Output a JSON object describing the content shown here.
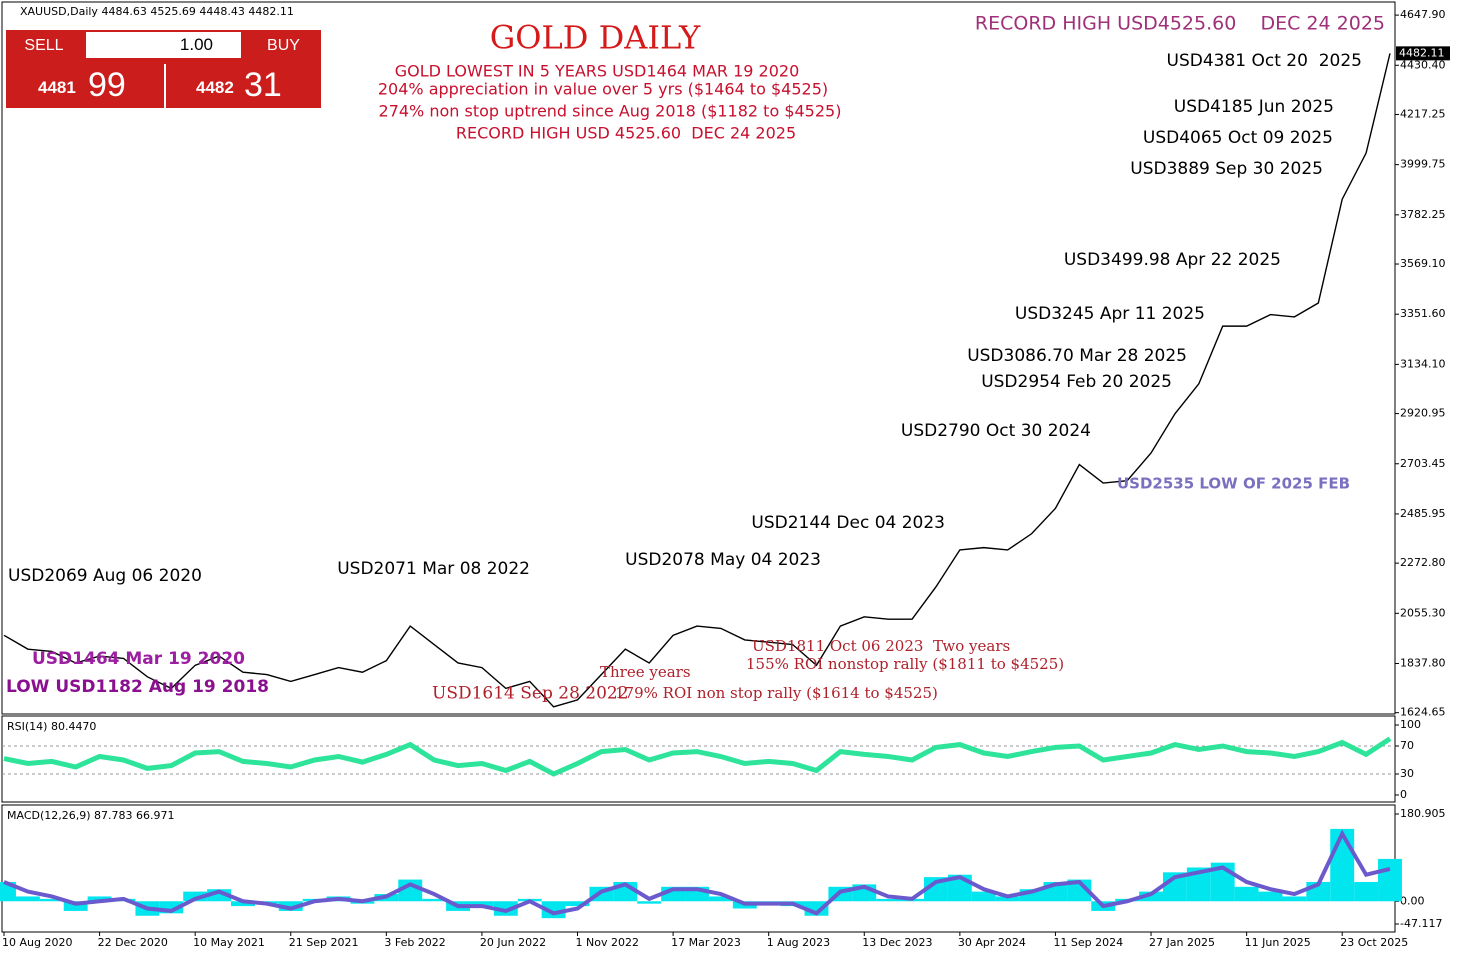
{
  "header": {
    "symbol": "XAUUSD,Daily  4484.63 4525.69 4448.43 4482.11"
  },
  "trade_panel": {
    "sell": "SELL",
    "lot": "1.00",
    "buy": "BUY",
    "sell_big": "4481",
    "sell_small": "99",
    "buy_big": "4482",
    "buy_small": "31"
  },
  "chart_data": [
    {
      "type": "line",
      "color": "#000000",
      "categories": [
        "10 Aug 2020",
        null,
        null,
        null,
        "22 Dec 2020",
        null,
        null,
        null,
        "10 May 2021",
        null,
        null,
        null,
        "21 Sep 2021",
        null,
        null,
        null,
        "3 Feb 2022",
        null,
        null,
        null,
        "20 Jun 2022",
        null,
        null,
        null,
        "1 Nov 2022",
        null,
        null,
        null,
        "17 Mar 2023",
        null,
        null,
        null,
        "1 Aug 2023",
        null,
        null,
        null,
        "13 Dec 2023",
        null,
        null,
        null,
        "30 Apr 2024",
        null,
        null,
        null,
        "11 Sep 2024",
        null,
        null,
        null,
        "27 Jan 2025",
        null,
        null,
        null,
        "11 Jun 2025",
        null,
        null,
        null,
        "23 Oct 2025",
        null,
        null
      ],
      "values": [
        1960,
        1900,
        1890,
        1840,
        1870,
        1860,
        1780,
        1730,
        1830,
        1870,
        1800,
        1790,
        1760,
        1790,
        1820,
        1800,
        1850,
        2000,
        1920,
        1840,
        1820,
        1730,
        1760,
        1650,
        1680,
        1790,
        1900,
        1840,
        1960,
        2000,
        1990,
        1940,
        1930,
        1920,
        1830,
        2000,
        2040,
        2030,
        2030,
        2170,
        2330,
        2340,
        2330,
        2400,
        2510,
        2700,
        2620,
        2630,
        2750,
        2920,
        3050,
        3300,
        3300,
        3350,
        3340,
        3400,
        3850,
        4050,
        4482.11
      ],
      "ylim": [
        1540.9,
        4678.7
      ],
      "yticks": [
        {
          "value": 1624.65,
          "label": "1624.65"
        },
        {
          "value": 1837.8,
          "label": "1837.80"
        },
        {
          "value": 2055.3,
          "label": "2055.30"
        },
        {
          "value": 2272.8,
          "label": "2272.80"
        },
        {
          "value": 2485.95,
          "label": "2485.95"
        },
        {
          "value": 2703.45,
          "label": "2703.45"
        },
        {
          "value": 2920.95,
          "label": "2920.95"
        },
        {
          "value": 3134.1,
          "label": "3134.10"
        },
        {
          "value": 3351.6,
          "label": "3351.60"
        },
        {
          "value": 3569.1,
          "label": "3569.10"
        },
        {
          "value": 3782.25,
          "label": "3782.25"
        },
        {
          "value": 3999.75,
          "label": "3999.75"
        },
        {
          "value": 4217.25,
          "label": "4217.25"
        },
        {
          "value": 4430.4,
          "label": "4430.40"
        },
        {
          "value": 4647.9,
          "label": "4647.90"
        }
      ],
      "last_price": 4482.11,
      "annotations": [
        {
          "text": "GOLD DAILY",
          "color": "#d41a1a"
        },
        {
          "text": "GOLD LOWEST IN 5 YEARS USD1464 MAR 19 2020",
          "color": "#c8102e"
        },
        {
          "text": "204% appreciation in value over 5 yrs ($1464 to $4525)",
          "color": "#c8102e"
        },
        {
          "text": "274% non stop uptrend since Aug 2018 ($1182 to $4525)",
          "color": "#c8102e"
        },
        {
          "text": "RECORD HIGH USD 4525.60  DEC 24 2025",
          "color": "#c8102e"
        },
        {
          "text": "RECORD HIGH USD4525.60    DEC 24 2025",
          "color": "#a0307a"
        },
        {
          "text": "USD4381 Oct 20  2025",
          "color": "#000000"
        },
        {
          "text": "USD4185 Jun 2025",
          "color": "#000000"
        },
        {
          "text": "USD4065 Oct 09 2025",
          "color": "#000000"
        },
        {
          "text": "USD3889 Sep 30 2025",
          "color": "#000000"
        },
        {
          "text": "USD3499.98 Apr 22 2025",
          "color": "#000000"
        },
        {
          "text": "USD3245 Apr 11 2025",
          "color": "#000000"
        },
        {
          "text": "USD3086.70 Mar 28 2025",
          "color": "#000000"
        },
        {
          "text": "USD2954 Feb 20 2025",
          "color": "#000000"
        },
        {
          "text": "USD2790 Oct 30 2024",
          "color": "#000000"
        },
        {
          "text": "USD2144 Dec 04 2023",
          "color": "#000000"
        },
        {
          "text": "USD2078 May 04 2023",
          "color": "#000000"
        },
        {
          "text": "USD2071 Mar 08 2022",
          "color": "#000000"
        },
        {
          "text": "USD2069 Aug 06 2020",
          "color": "#000000"
        },
        {
          "text": "USD1464 Mar 19 2020",
          "color": "#9b1fa0"
        },
        {
          "text": "LOW USD1182 Aug 19 2018",
          "color": "#8a1090"
        },
        {
          "text": "USD2535 LOW OF 2025 FEB",
          "color": "#7a70c0"
        },
        {
          "text": "USD1811 Oct 06 2023  Two years",
          "color": "#b0202a"
        },
        {
          "text": "155% ROI nonstop rally ($1811 to $4525)",
          "color": "#b0202a"
        },
        {
          "text": "Three years",
          "color": "#b0202a"
        },
        {
          "text": "USD1614 Sep 28 2022",
          "color": "#b0202a"
        },
        {
          "text": "179% ROI non stop rally ($1614 to $4525)",
          "color": "#b0202a"
        }
      ]
    },
    {
      "type": "line",
      "label": "RSI(14) 80.4470",
      "color": "#2ee39a",
      "levels": [
        70,
        30
      ],
      "values": [
        52,
        45,
        48,
        40,
        55,
        50,
        38,
        42,
        60,
        62,
        48,
        45,
        40,
        50,
        55,
        47,
        58,
        72,
        50,
        42,
        45,
        35,
        48,
        30,
        45,
        62,
        65,
        50,
        60,
        62,
        55,
        45,
        48,
        45,
        35,
        62,
        58,
        55,
        50,
        68,
        72,
        60,
        55,
        62,
        68,
        70,
        50,
        55,
        60,
        72,
        65,
        70,
        62,
        60,
        55,
        62,
        75,
        58,
        80.447
      ],
      "ylim": [
        0,
        100
      ],
      "yticks": [
        0,
        30,
        70,
        100
      ]
    },
    {
      "type": "macd",
      "label": "MACD(12,26,9) 87.783 66.971",
      "series": [
        {
          "color": "#00e5ee",
          "values": [
            40,
            10,
            5,
            -20,
            10,
            5,
            -30,
            -25,
            20,
            25,
            -10,
            -5,
            -20,
            5,
            10,
            -5,
            15,
            45,
            5,
            -20,
            -10,
            -30,
            5,
            -35,
            -10,
            30,
            40,
            -5,
            30,
            30,
            10,
            -15,
            -5,
            -10,
            -30,
            30,
            35,
            5,
            5,
            50,
            55,
            20,
            10,
            25,
            40,
            45,
            -20,
            5,
            20,
            60,
            70,
            80,
            30,
            20,
            10,
            40,
            150,
            40,
            87.783
          ]
        },
        {
          "color": "#6a5acd",
          "values": [
            40,
            20,
            10,
            -5,
            0,
            5,
            -15,
            -20,
            5,
            20,
            0,
            -5,
            -15,
            0,
            5,
            0,
            10,
            35,
            15,
            -10,
            -10,
            -20,
            0,
            -25,
            -15,
            20,
            35,
            5,
            25,
            25,
            15,
            -5,
            -5,
            -5,
            -25,
            20,
            30,
            10,
            5,
            40,
            50,
            25,
            10,
            20,
            35,
            40,
            -10,
            0,
            15,
            50,
            60,
            70,
            40,
            25,
            15,
            35,
            140,
            55,
            66.971
          ]
        }
      ],
      "ylim": [
        -47.117,
        180.905
      ],
      "yticks": [
        -47.117,
        {
          "value": 0,
          "label": "0.00"
        },
        180.905
      ]
    }
  ]
}
